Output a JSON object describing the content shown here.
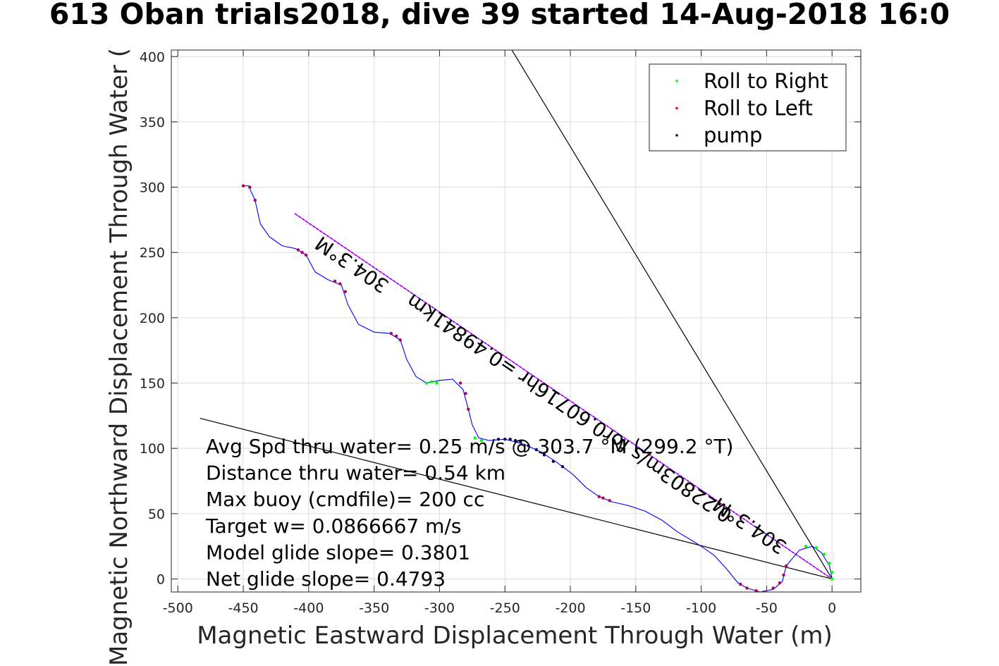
{
  "chart_data": {
    "type": "line",
    "title": "613 Oban trials2018, dive 39 started 14-Aug-2018 16:0",
    "xlabel": "Magnetic Eastward Displacement Through Water (m)",
    "ylabel": "Magnetic Northward Displacement Through Water (",
    "xlim": [
      -505,
      22
    ],
    "ylim": [
      -10,
      405
    ],
    "xticks": [
      -500,
      -450,
      -400,
      -350,
      -300,
      -250,
      -200,
      -150,
      -100,
      -50,
      0
    ],
    "yticks": [
      0,
      50,
      100,
      150,
      200,
      250,
      300,
      350,
      400
    ],
    "grid": true,
    "legend_position": "top-right",
    "legend": [
      {
        "label": "Roll to Right",
        "color": "#00ff00"
      },
      {
        "label": "Roll to Left",
        "color": "#ff0000"
      },
      {
        "label": "pump",
        "color": "#000000"
      }
    ],
    "track": {
      "color": "#0000ff",
      "points": [
        [
          0,
          0
        ],
        [
          -2,
          10
        ],
        [
          -8,
          20
        ],
        [
          -15,
          25
        ],
        [
          -25,
          22
        ],
        [
          -35,
          10
        ],
        [
          -38,
          -2
        ],
        [
          -45,
          -8
        ],
        [
          -55,
          -10
        ],
        [
          -65,
          -7
        ],
        [
          -72,
          -3
        ],
        [
          -80,
          7
        ],
        [
          -90,
          18
        ],
        [
          -100,
          25
        ],
        [
          -108,
          30
        ],
        [
          -118,
          36
        ],
        [
          -130,
          45
        ],
        [
          -143,
          52
        ],
        [
          -155,
          56
        ],
        [
          -168,
          59
        ],
        [
          -178,
          63
        ],
        [
          -188,
          70
        ],
        [
          -198,
          80
        ],
        [
          -210,
          89
        ],
        [
          -222,
          97
        ],
        [
          -235,
          103
        ],
        [
          -250,
          107
        ],
        [
          -262,
          106
        ],
        [
          -270,
          108
        ],
        [
          -275,
          118
        ],
        [
          -278,
          130
        ],
        [
          -282,
          145
        ],
        [
          -290,
          153
        ],
        [
          -300,
          152
        ],
        [
          -310,
          150
        ],
        [
          -318,
          155
        ],
        [
          -325,
          168
        ],
        [
          -330,
          183
        ],
        [
          -338,
          188
        ],
        [
          -350,
          189
        ],
        [
          -362,
          195
        ],
        [
          -370,
          210
        ],
        [
          -375,
          225
        ],
        [
          -385,
          229
        ],
        [
          -395,
          235
        ],
        [
          -402,
          248
        ],
        [
          -410,
          253
        ],
        [
          -420,
          255
        ],
        [
          -430,
          262
        ],
        [
          -437,
          272
        ],
        [
          -441,
          290
        ],
        [
          -446,
          301
        ],
        [
          -451,
          301
        ]
      ]
    },
    "roll_right": [
      [
        -20,
        25
      ],
      [
        -12,
        24
      ],
      [
        -6,
        19
      ],
      [
        -2,
        12
      ],
      [
        0,
        5
      ],
      [
        0,
        0
      ],
      [
        -310,
        150
      ],
      [
        -306,
        151
      ],
      [
        -302,
        150
      ],
      [
        -273,
        108
      ],
      [
        -268,
        106
      ]
    ],
    "roll_left": [
      [
        -35,
        10
      ],
      [
        -37,
        3
      ],
      [
        -40,
        -3
      ],
      [
        -45,
        -7
      ],
      [
        -52,
        -10
      ],
      [
        -58,
        -9
      ],
      [
        -65,
        -7
      ],
      [
        -70,
        -4
      ],
      [
        -170,
        60
      ],
      [
        -175,
        62
      ],
      [
        -178,
        63
      ],
      [
        -278,
        130
      ],
      [
        -280,
        142
      ],
      [
        -284,
        150
      ],
      [
        -330,
        183
      ],
      [
        -333,
        186
      ],
      [
        -337,
        188
      ],
      [
        -372,
        220
      ],
      [
        -376,
        226
      ],
      [
        -380,
        228
      ],
      [
        -402,
        248
      ],
      [
        -405,
        250
      ],
      [
        -408,
        252
      ],
      [
        -441,
        290
      ],
      [
        -445,
        300
      ],
      [
        -450,
        301
      ]
    ],
    "pump": [
      [
        -255,
        107
      ],
      [
        -250,
        107
      ],
      [
        -246,
        107
      ],
      [
        -242,
        106
      ],
      [
        -238,
        105
      ],
      [
        -232,
        102
      ],
      [
        -226,
        99
      ],
      [
        -220,
        95
      ],
      [
        -213,
        90
      ],
      [
        -206,
        86
      ]
    ],
    "lines": [
      {
        "from": [
          0,
          0
        ],
        "to": [
          -290,
          480
        ],
        "color": "#000000"
      },
      {
        "from": [
          0,
          0
        ],
        "to": [
          -483,
          123
        ],
        "color": "#000000"
      },
      {
        "from": [
          0,
          0
        ],
        "to": [
          -411,
          280
        ],
        "color": "#ff00ff"
      },
      {
        "from": [
          0,
          0
        ],
        "to": [
          -411,
          280
        ],
        "color": "#0000ff"
      }
    ],
    "annotations": [
      {
        "text": "304.3°M",
        "x": -364,
        "y": 245,
        "rotation": 34.3
      },
      {
        "text": "0.22803m/s for0.60716hr =0.49841km",
        "x": -198,
        "y": 135,
        "rotation": 34.3
      },
      {
        "text": "304.3°M",
        "x": -60,
        "y": 45,
        "rotation": 34.3
      }
    ],
    "stats": [
      "Avg Spd thru water=  0.25 m/s @ 303.7 °M (299.2 °T)",
      "Distance thru water=  0.54 km",
      "Max buoy (cmdfile)= 200 cc",
      "Target w= 0.0866667 m/s",
      "Model glide slope= 0.3801",
      "Net glide slope= 0.4793"
    ]
  }
}
